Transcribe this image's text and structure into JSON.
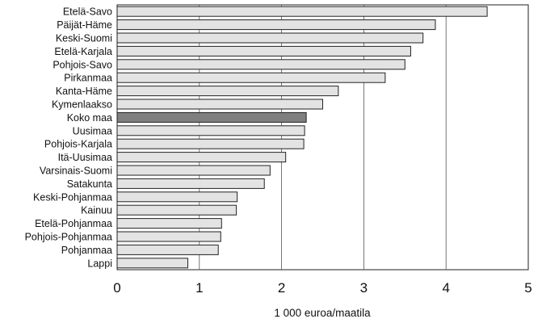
{
  "chart_data": {
    "type": "bar",
    "orientation": "horizontal",
    "categories": [
      "Etelä-Savo",
      "Päijät-Häme",
      "Keski-Suomi",
      "Etelä-Karjala",
      "Pohjois-Savo",
      "Pirkanmaa",
      "Kanta-Häme",
      "Kymenlaakso",
      "Koko maa",
      "Uusimaa",
      "Pohjois-Karjala",
      "Itä-Uusimaa",
      "Varsinais-Suomi",
      "Satakunta",
      "Keski-Pohjanmaa",
      "Kainuu",
      "Etelä-Pohjanmaa",
      "Pohjois-Pohjanmaa",
      "Pohjanmaa",
      "Lappi"
    ],
    "values": [
      4.5,
      3.87,
      3.72,
      3.57,
      3.5,
      3.26,
      2.69,
      2.5,
      2.3,
      2.28,
      2.27,
      2.05,
      1.86,
      1.79,
      1.46,
      1.45,
      1.27,
      1.26,
      1.23,
      0.86
    ],
    "highlight": "Koko maa",
    "xlabel": "1 000 euroa/maatila",
    "ylabel": "",
    "title": "",
    "xlim": [
      0,
      5
    ],
    "xticks": [
      0,
      1,
      2,
      3,
      4,
      5
    ],
    "grid": "vertical",
    "legend": "none",
    "colors": {
      "bar": "#e3e3e3",
      "highlight": "#7f7f7f",
      "stroke": "#222222",
      "grid": "#555555"
    }
  }
}
